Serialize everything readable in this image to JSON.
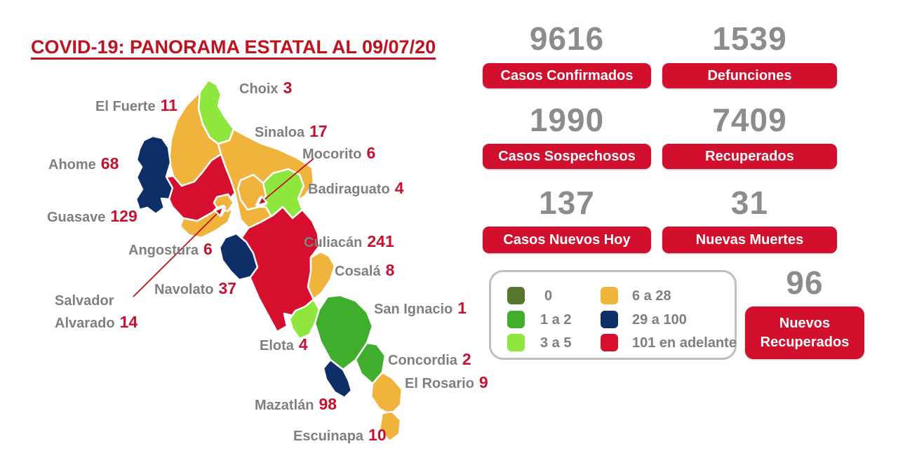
{
  "title": "COVID-19: PANORAMA ESTATAL AL 09/07/20",
  "colors": {
    "title_red": "#C0111F",
    "box_red": "#D20F2D",
    "number_gray": "#8C8C8C",
    "name_gray": "#7F7F7F",
    "value_red": "#C41230",
    "legend_border": "#BFBFBF",
    "arrow_red": "#C0111F",
    "cat_0": "#55782C",
    "cat_1_2": "#3FAE2D",
    "cat_3_5": "#8FE73E",
    "cat_6_28": "#F0B33C",
    "cat_29_100": "#0E2E68",
    "cat_101": "#D50F2D"
  },
  "stats": [
    {
      "value": "9616",
      "label": "Casos Confirmados"
    },
    {
      "value": "1539",
      "label": "Defunciones"
    },
    {
      "value": "1990",
      "label": "Casos Sospechosos"
    },
    {
      "value": "7409",
      "label": "Recuperados"
    },
    {
      "value": "137",
      "label": "Casos Nuevos Hoy"
    },
    {
      "value": "31",
      "label": "Nuevas Muertes"
    }
  ],
  "extra_stat": {
    "value": "96",
    "label_lines": [
      "Nuevos",
      "Recuperados"
    ]
  },
  "legend": {
    "items": [
      {
        "label": "0",
        "color_key": "cat_0"
      },
      {
        "label": "1 a 2",
        "color_key": "cat_1_2"
      },
      {
        "label": "3 a 5",
        "color_key": "cat_3_5"
      },
      {
        "label": "6 a 28",
        "color_key": "cat_6_28"
      },
      {
        "label": "29 a 100",
        "color_key": "cat_29_100"
      },
      {
        "label": "101 en adelante",
        "color_key": "cat_101"
      }
    ]
  },
  "map": {
    "municipalities": [
      {
        "id": "choix",
        "name": "Choix",
        "cases": "3",
        "category": "cat_3_5"
      },
      {
        "id": "el_fuerte",
        "name": "El Fuerte",
        "cases": "11",
        "category": "cat_6_28"
      },
      {
        "id": "sinaloa",
        "name": "Sinaloa",
        "cases": "17",
        "category": "cat_6_28"
      },
      {
        "id": "mocorito",
        "name": "Mocorito",
        "cases": "6",
        "category": "cat_6_28"
      },
      {
        "id": "ahome",
        "name": "Ahome",
        "cases": "68",
        "category": "cat_29_100"
      },
      {
        "id": "badiraguato",
        "name": "Badiraguato",
        "cases": "4",
        "category": "cat_3_5"
      },
      {
        "id": "guasave",
        "name": "Guasave",
        "cases": "129",
        "category": "cat_101"
      },
      {
        "id": "culiacan",
        "name": "Culiacán",
        "cases": "241",
        "category": "cat_101"
      },
      {
        "id": "angostura",
        "name": "Angostura",
        "cases": "6",
        "category": "cat_6_28"
      },
      {
        "id": "cosala",
        "name": "Cosalá",
        "cases": "8",
        "category": "cat_6_28"
      },
      {
        "id": "navolato",
        "name": "Navolato",
        "cases": "37",
        "category": "cat_29_100"
      },
      {
        "id": "san_ignacio",
        "name": "San Ignacio",
        "cases": "1",
        "category": "cat_1_2"
      },
      {
        "id": "salvador_alvarado",
        "name": "Salvador Alvarado",
        "name_lines": [
          "Salvador",
          "Alvarado"
        ],
        "cases": "14",
        "category": "cat_6_28"
      },
      {
        "id": "elota",
        "name": "Elota",
        "cases": "4",
        "category": "cat_3_5"
      },
      {
        "id": "concordia",
        "name": "Concordia",
        "cases": "2",
        "category": "cat_1_2"
      },
      {
        "id": "el_rosario",
        "name": "El Rosario",
        "cases": "9",
        "category": "cat_6_28"
      },
      {
        "id": "mazatlan",
        "name": "Mazatlán",
        "cases": "98",
        "category": "cat_29_100"
      },
      {
        "id": "escuinapa",
        "name": "Escuinapa",
        "cases": "10",
        "category": "cat_6_28"
      }
    ]
  }
}
